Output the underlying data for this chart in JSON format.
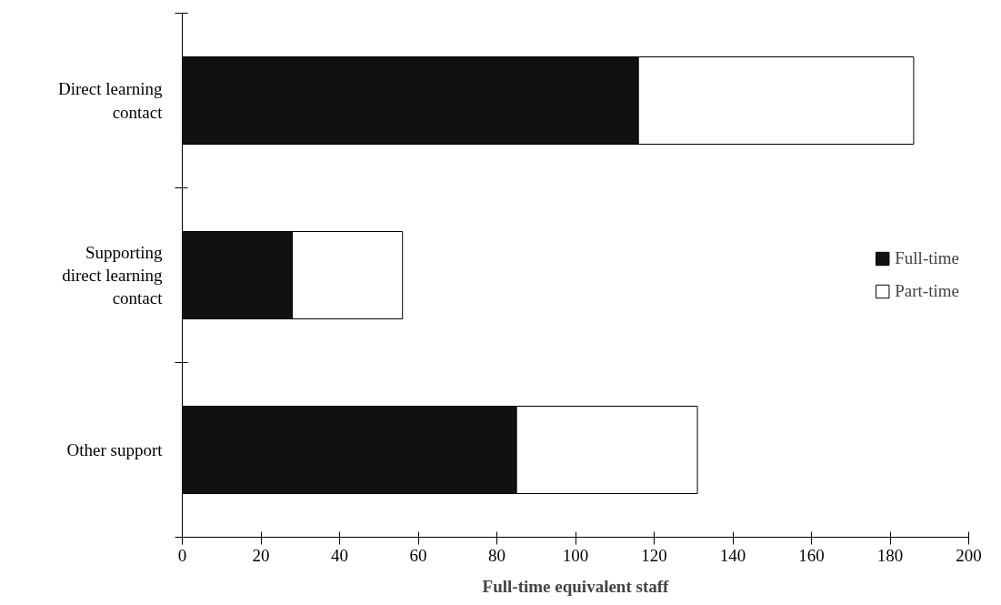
{
  "chart_data": {
    "type": "bar",
    "orientation": "horizontal",
    "stacked": true,
    "categories": [
      "Direct learning contact",
      "Supporting direct learning contact",
      "Other support"
    ],
    "series": [
      {
        "name": "Full-time",
        "color": "#111111",
        "values": [
          116,
          28,
          85
        ]
      },
      {
        "name": "Part-time",
        "color": "#ffffff",
        "values": [
          70,
          28,
          46
        ]
      }
    ],
    "xlabel": "Full-time equivalent staff",
    "xlim": [
      0,
      200
    ],
    "xticks": [
      0,
      20,
      40,
      60,
      80,
      100,
      120,
      140,
      160,
      180,
      200
    ],
    "grid": false,
    "legend": "right"
  }
}
